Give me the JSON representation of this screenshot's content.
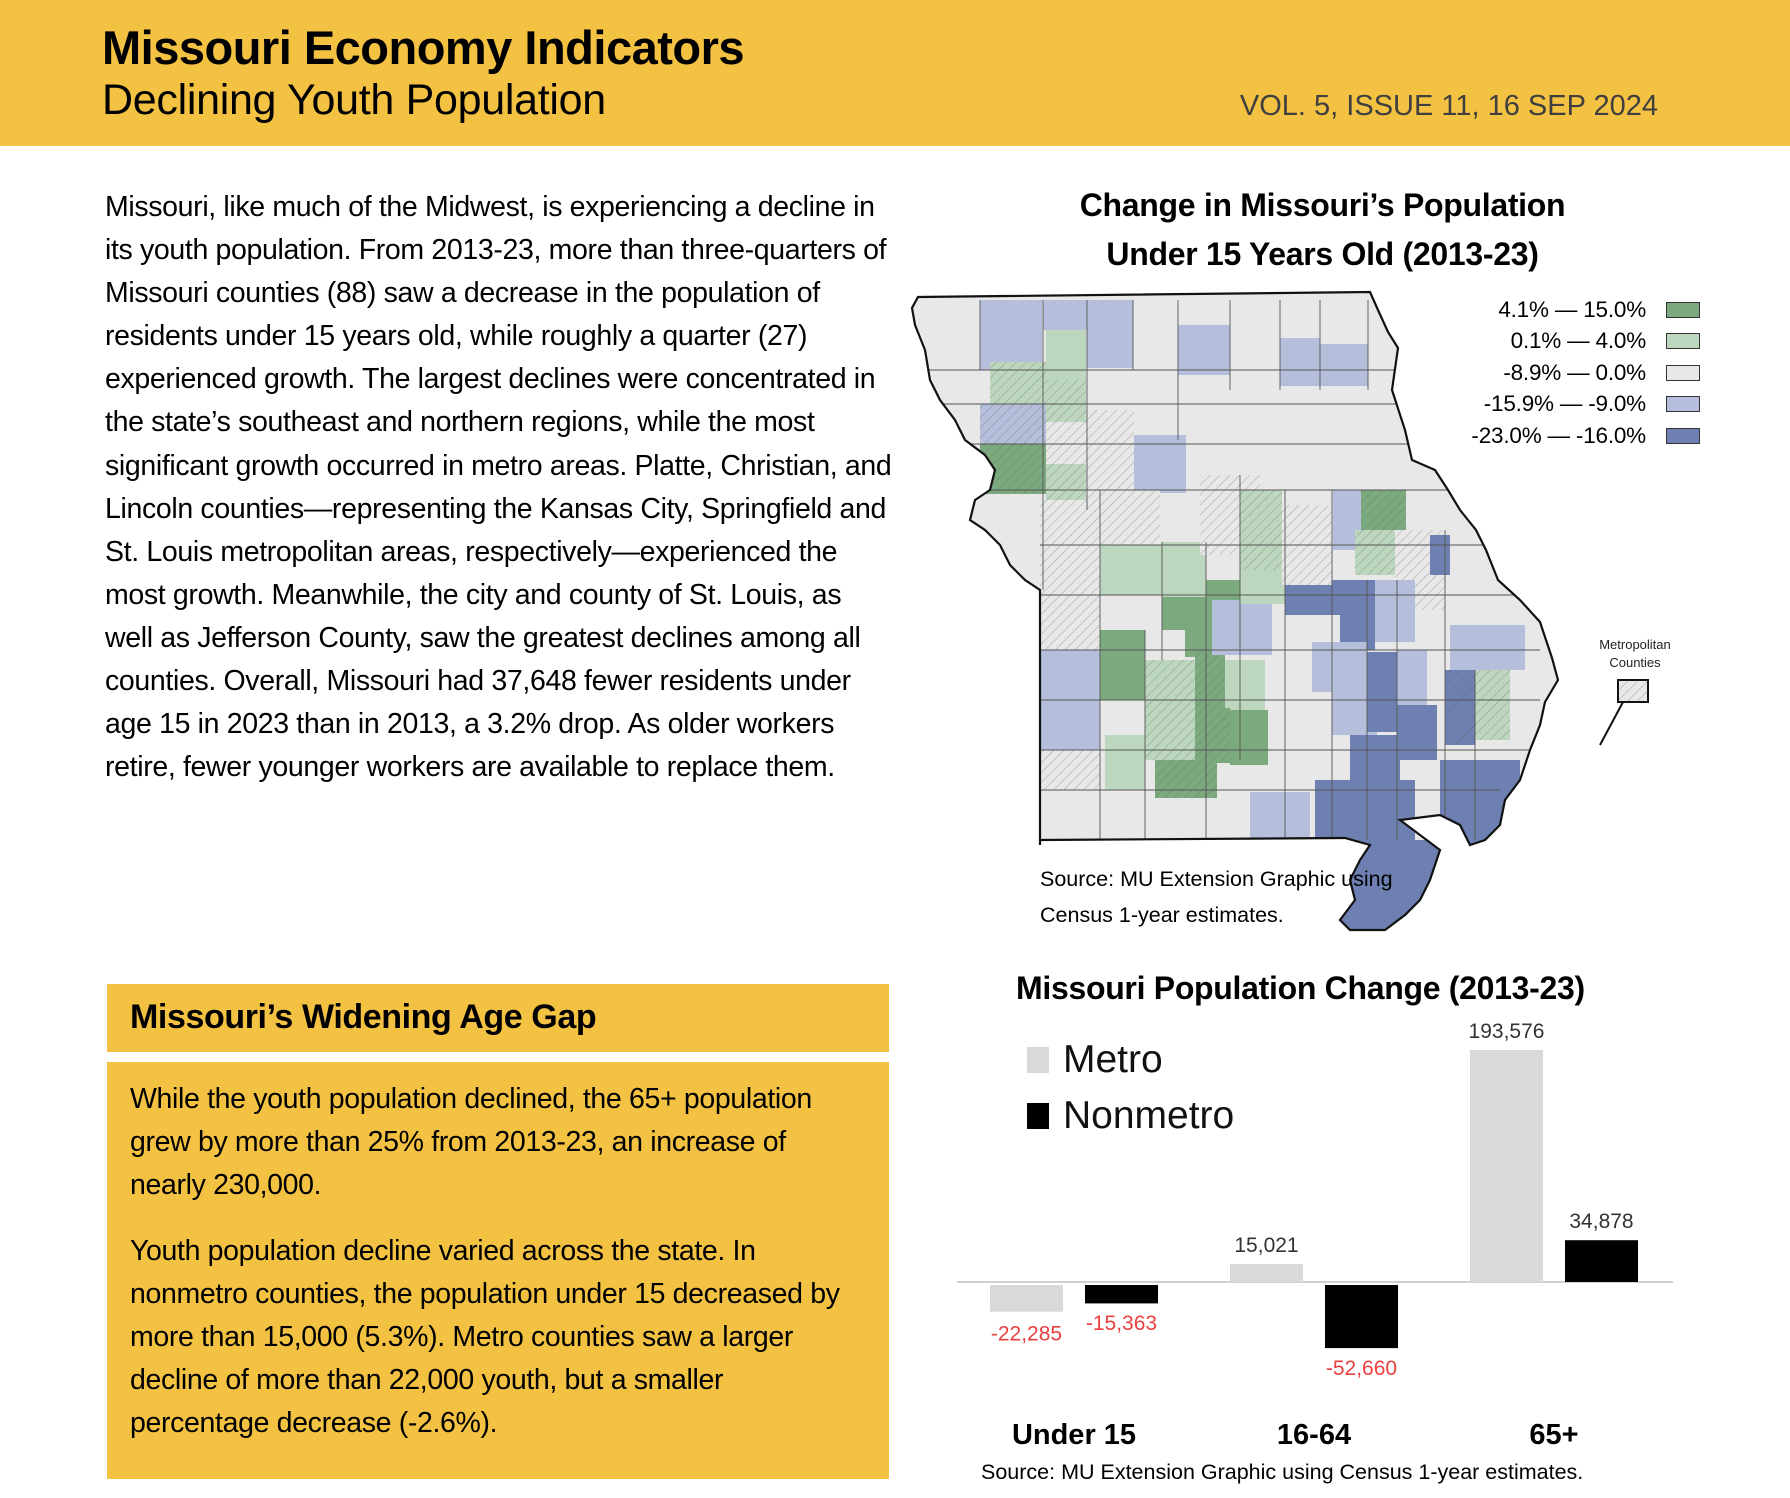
{
  "header": {
    "title": "Missouri Economy Indicators",
    "subtitle": "Declining Youth Population",
    "issue": "VOL. 5, ISSUE 11, 16 SEP 2024",
    "accent_color": "#F4C242"
  },
  "intro": {
    "text": "Missouri, like much of the Midwest, is experiencing a decline in its youth population. From 2013-23, more than three-quarters of Missouri counties (88) saw a decrease in the population of residents under 15 years old, while roughly a quarter (27) experienced growth. The largest declines were concentrated in the state’s southeast and northern regions, while the most significant growth occurred in metro areas. Platte, Christian, and Lincoln counties—representing the Kansas City, Springfield and St. Louis metropolitan areas, respectively—experienced the most growth. Meanwhile, the city and county of St. Louis, as well as Jefferson County, saw the greatest declines among all counties. Overall, Missouri had 37,648 fewer residents under age 15 in 2023 than in 2013, a 3.2% drop. As older workers retire, fewer younger workers are available to replace them."
  },
  "age_gap": {
    "heading": "Missouri’s Widening Age Gap",
    "paragraphs": [
      "While the youth population declined, the 65+ population grew by more than 25% from 2013-23, an increase of nearly 230,000.",
      "Youth population decline varied across the state. In nonmetro counties, the population under 15 decreased by more than 15,000 (5.3%). Metro counties saw a larger decline of more than 22,000 youth, but a smaller percentage decrease (-2.6%)."
    ]
  },
  "map": {
    "title_line1": "Change in Missouri’s Population",
    "title_line2": "Under 15 Years Old (2013-23)",
    "legend": [
      {
        "label": "4.1% — 15.0%",
        "color": "#7BAA7F"
      },
      {
        "label": "0.1% — 4.0%",
        "color": "#BDD7BF"
      },
      {
        "label": "-8.9% — 0.0%",
        "color": "#E8E8E8"
      },
      {
        "label": "-15.9% — -9.0%",
        "color": "#B5BFDB"
      },
      {
        "label": "-23.0% — -16.0%",
        "color": "#6E80B1"
      }
    ],
    "metro_label_line1": "Metropolitan",
    "metro_label_line2": "Counties",
    "source_line1": "Source: MU Extension Graphic using",
    "source_line2": "Census 1-year estimates."
  },
  "chart_data": {
    "type": "bar",
    "title": "Missouri Population Change (2013-23)",
    "categories": [
      "Under 15",
      "16-64",
      "65+"
    ],
    "series": [
      {
        "name": "Metro",
        "color": "#D9D9D9",
        "values": [
          -22285,
          15021,
          193576
        ],
        "labels": [
          "-22,285",
          "15,021",
          "193,576"
        ]
      },
      {
        "name": "Nonmetro",
        "color": "#000000",
        "values": [
          -15363,
          -52660,
          34878
        ],
        "labels": [
          "-15,363",
          "-52,660",
          "34,878"
        ]
      }
    ],
    "negative_label_color": "#E8403F",
    "positive_label_color": "#333333",
    "xlabel": "",
    "ylabel": "",
    "ylim": [
      -60000,
      200000
    ],
    "grid": false,
    "legend_position": "top-left",
    "source": "Source: MU Extension Graphic using Census 1-year estimates."
  }
}
